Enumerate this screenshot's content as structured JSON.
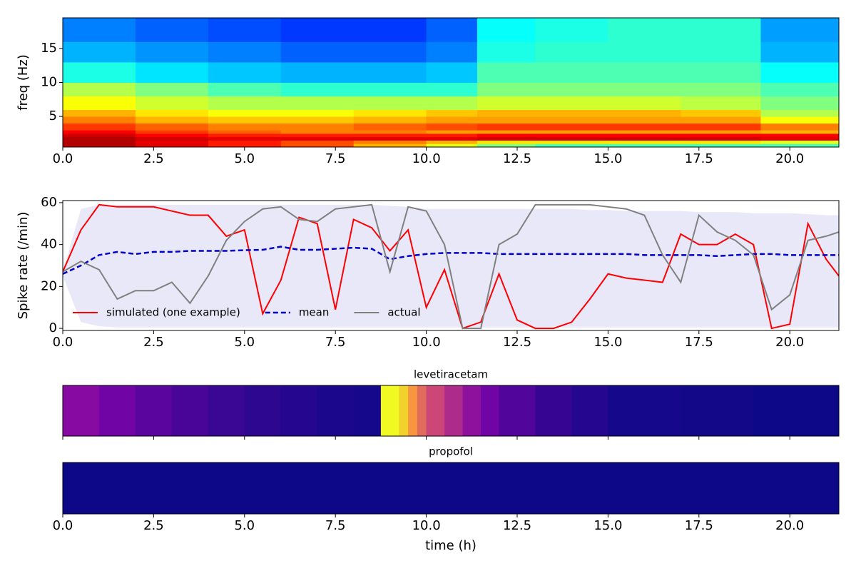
{
  "chart_data": [
    {
      "type": "heatmap",
      "colormap": "jet",
      "ylabel": "freq (Hz)",
      "xlim": [
        0,
        21.35
      ],
      "ylim": [
        0.5,
        19.5
      ],
      "xticks": [
        {
          "value": 0,
          "label": "0.0"
        },
        {
          "value": 2.5,
          "label": "2.5"
        },
        {
          "value": 5,
          "label": "5.0"
        },
        {
          "value": 7.5,
          "label": "7.5"
        },
        {
          "value": 10,
          "label": "10.0"
        },
        {
          "value": 12.5,
          "label": "12.5"
        },
        {
          "value": 15,
          "label": "15.0"
        },
        {
          "value": 17.5,
          "label": "17.5"
        },
        {
          "value": 20,
          "label": "20.0"
        }
      ],
      "yticks": [
        5,
        10,
        15
      ],
      "time_bins": [
        0,
        2,
        4,
        6,
        8,
        10,
        11.4,
        13,
        15,
        17,
        19.2,
        21.35
      ],
      "freq_bins": [
        0.5,
        1,
        1.5,
        2,
        2.5,
        3,
        4,
        5,
        6,
        8,
        10,
        13,
        16,
        19.5
      ],
      "values": [
        [
          0.95,
          0.9,
          0.85,
          0.8,
          0.7,
          0.6,
          0.5,
          0.45,
          0.45,
          0.45,
          0.45
        ],
        [
          0.95,
          0.9,
          0.85,
          0.8,
          0.75,
          0.7,
          0.65,
          0.65,
          0.65,
          0.65,
          0.6
        ],
        [
          0.95,
          0.92,
          0.9,
          0.9,
          0.9,
          0.9,
          0.92,
          0.92,
          0.92,
          0.92,
          0.9
        ],
        [
          0.92,
          0.88,
          0.85,
          0.85,
          0.85,
          0.85,
          0.88,
          0.88,
          0.88,
          0.88,
          0.88
        ],
        [
          0.88,
          0.82,
          0.78,
          0.75,
          0.75,
          0.72,
          0.72,
          0.72,
          0.72,
          0.72,
          0.7
        ],
        [
          0.82,
          0.78,
          0.75,
          0.75,
          0.78,
          0.8,
          0.82,
          0.82,
          0.82,
          0.82,
          0.75
        ],
        [
          0.75,
          0.7,
          0.68,
          0.68,
          0.7,
          0.72,
          0.72,
          0.72,
          0.72,
          0.72,
          0.62
        ],
        [
          0.7,
          0.65,
          0.62,
          0.62,
          0.65,
          0.68,
          0.7,
          0.7,
          0.7,
          0.68,
          0.55
        ],
        [
          0.62,
          0.58,
          0.55,
          0.55,
          0.55,
          0.55,
          0.58,
          0.58,
          0.58,
          0.56,
          0.5
        ],
        [
          0.55,
          0.5,
          0.45,
          0.42,
          0.42,
          0.42,
          0.5,
          0.5,
          0.5,
          0.5,
          0.45
        ],
        [
          0.4,
          0.35,
          0.32,
          0.3,
          0.3,
          0.32,
          0.45,
          0.45,
          0.45,
          0.45,
          0.38
        ],
        [
          0.3,
          0.27,
          0.25,
          0.22,
          0.22,
          0.25,
          0.4,
          0.42,
          0.42,
          0.42,
          0.3
        ],
        [
          0.25,
          0.22,
          0.2,
          0.18,
          0.18,
          0.22,
          0.38,
          0.4,
          0.42,
          0.42,
          0.28
        ]
      ]
    },
    {
      "type": "line",
      "ylabel": "Spike rate (/min)",
      "legend": "lower left",
      "xlim": [
        0,
        21.35
      ],
      "ylim": [
        -1,
        61
      ],
      "xticks": [
        {
          "value": 0,
          "label": "0.0"
        },
        {
          "value": 2.5,
          "label": "2.5"
        },
        {
          "value": 5,
          "label": "5.0"
        },
        {
          "value": 7.5,
          "label": "7.5"
        },
        {
          "value": 10,
          "label": "10.0"
        },
        {
          "value": 12.5,
          "label": "12.5"
        },
        {
          "value": 15,
          "label": "15.0"
        },
        {
          "value": 17.5,
          "label": "17.5"
        },
        {
          "value": 20,
          "label": "20.0"
        }
      ],
      "yticks": [
        0,
        20,
        40,
        60
      ],
      "x": [
        0,
        0.5,
        1,
        1.5,
        2,
        2.5,
        3,
        3.5,
        4,
        4.5,
        5,
        5.5,
        6,
        6.5,
        7,
        7.5,
        8,
        8.5,
        9,
        9.5,
        10,
        10.5,
        11,
        11.5,
        12,
        12.5,
        13,
        13.5,
        14,
        14.5,
        15,
        15.5,
        16,
        16.5,
        17,
        17.5,
        18,
        18.5,
        19,
        19.5,
        20,
        20.5,
        21,
        21.35
      ],
      "band": {
        "color": "#e8e8f8",
        "lower": [
          25,
          3,
          1,
          0.5,
          0.5,
          0.5,
          0.5,
          0.5,
          0.5,
          0.5,
          0.5,
          0.5,
          0.5,
          0.5,
          0.5,
          0.5,
          0.5,
          0.5,
          0.5,
          0.5,
          0.5,
          0.5,
          0.5,
          0.5,
          0.5,
          0.5,
          0.5,
          0.5,
          0.5,
          0.5,
          0.5,
          0.5,
          0.5,
          0.5,
          0.5,
          0.5,
          0.5,
          0.5,
          0.5,
          0.5,
          0.5,
          0.5,
          0.5,
          0.5
        ],
        "upper": [
          27,
          57,
          59,
          59,
          59,
          59,
          59,
          59,
          59,
          59,
          59,
          59,
          59,
          59,
          59,
          59,
          59,
          59,
          58.5,
          58,
          57,
          57,
          57,
          57,
          57,
          57,
          57,
          57,
          57,
          56.5,
          56.5,
          56,
          56,
          56,
          56,
          55.5,
          55.5,
          55.5,
          55,
          55,
          55,
          54.5,
          54,
          54
        ]
      },
      "series": [
        {
          "name": "simulated (one example)",
          "color": "#ff0000",
          "linestyle": "solid",
          "values": [
            27,
            47,
            59,
            58,
            58,
            58,
            56,
            54,
            54,
            44,
            47,
            7,
            23,
            53,
            50,
            9,
            52,
            48,
            37,
            47,
            10,
            28,
            0,
            3,
            26,
            4,
            0,
            0,
            3,
            14,
            26,
            24,
            23,
            22,
            45,
            40,
            40,
            45,
            40,
            0,
            2,
            50,
            33,
            25
          ]
        },
        {
          "name": "mean",
          "color": "#0000cc",
          "linestyle": "dashed",
          "values": [
            26,
            30,
            35,
            36.5,
            35.5,
            36.5,
            36.5,
            37,
            37,
            37,
            37.3,
            37.5,
            39,
            37.5,
            37.5,
            38,
            38.5,
            38,
            33,
            34.5,
            35.5,
            36,
            36,
            36,
            35.5,
            35.5,
            35.5,
            35.5,
            35.5,
            35.5,
            35.5,
            35.5,
            35,
            35,
            35,
            35,
            34.5,
            35,
            35.5,
            35.5,
            35,
            35,
            35,
            35
          ]
        },
        {
          "name": "actual",
          "color": "#808080",
          "linestyle": "solid",
          "values": [
            27,
            32,
            28,
            14,
            18,
            18,
            22,
            12,
            25,
            42,
            51,
            57,
            58,
            52,
            51,
            57,
            58,
            59,
            27,
            58,
            56,
            40,
            0,
            0,
            40,
            45,
            59,
            59,
            59,
            59,
            58,
            57,
            54,
            35,
            22,
            54,
            46,
            42,
            35,
            9,
            16,
            42,
            44,
            46
          ]
        }
      ]
    },
    {
      "type": "strip",
      "title": "levetiracetam",
      "colormap": "plasma",
      "xlim": [
        0,
        21.35
      ],
      "xticks": [
        0,
        2.5,
        5,
        7.5,
        10,
        12.5,
        15,
        17.5,
        20
      ],
      "show_xtick_labels": false,
      "bins": [
        0,
        1,
        2,
        3,
        4,
        5,
        6,
        7,
        8,
        8.75,
        9.25,
        9.5,
        9.75,
        10,
        10.5,
        11,
        11.5,
        12,
        13,
        14,
        15,
        17,
        19,
        21.35
      ],
      "values": [
        0.28,
        0.22,
        0.17,
        0.13,
        0.1,
        0.07,
        0.05,
        0.03,
        0.02,
        1.0,
        0.9,
        0.75,
        0.62,
        0.5,
        0.4,
        0.3,
        0.22,
        0.15,
        0.09,
        0.05,
        0.02,
        0.01,
        0
      ]
    },
    {
      "type": "strip",
      "title": "propofol",
      "colormap": "plasma",
      "xlim": [
        0,
        21.35
      ],
      "xlabel": "time (h)",
      "xticks": [
        {
          "value": 0,
          "label": "0.0"
        },
        {
          "value": 2.5,
          "label": "2.5"
        },
        {
          "value": 5,
          "label": "5.0"
        },
        {
          "value": 7.5,
          "label": "7.5"
        },
        {
          "value": 10,
          "label": "10.0"
        },
        {
          "value": 12.5,
          "label": "12.5"
        },
        {
          "value": 15,
          "label": "15.0"
        },
        {
          "value": 17.5,
          "label": "17.5"
        },
        {
          "value": 20,
          "label": "20.0"
        }
      ],
      "show_xtick_labels": true,
      "bins": [
        0,
        21.35
      ],
      "values": [
        0
      ]
    }
  ]
}
